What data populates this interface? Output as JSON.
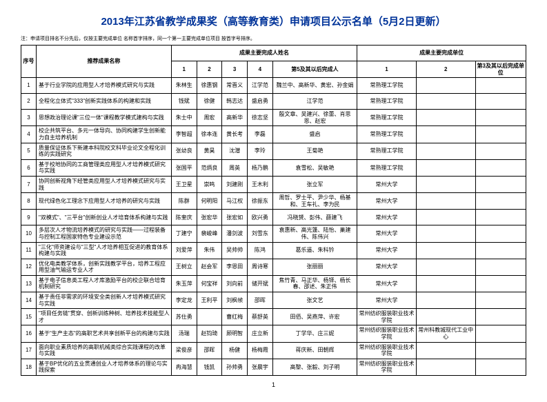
{
  "title": "2013年江苏省教学成果奖（高等教育类）申请项目公示名单（5月2日更新）",
  "note": "注：申请项目排名不分先后，仅按主要完成单位 名称首字排序，同一个第一主要完成单位项目 按首字号排序。",
  "headers": {
    "idx": "序号",
    "name": "推荐成果名称",
    "people_group": "成果主要完成人姓名",
    "units_group": "成果主要完成单位",
    "p1": "1",
    "p2": "2",
    "p3": "3",
    "p4": "4",
    "p5": "第5及其以后完成人",
    "u1": "1",
    "u2": "2",
    "u3": "第3及其以后完成单位"
  },
  "rows": [
    {
      "idx": "1",
      "name": "基于行业学院的应用型人才培养模式研究与实践",
      "p": [
        "朱林生",
        "徐惠钢",
        "常晋义",
        "江学范",
        "魏兰中、高新华、黄宏、孙金娟"
      ],
      "u": [
        "常熟理工学院",
        "",
        ""
      ]
    },
    {
      "idx": "2",
      "name": "全程化立体式\"333\"创新实践体系的构建和实践",
      "p": [
        "钱斌",
        "徐健",
        "韩志达",
        "盛启勇",
        "江学范"
      ],
      "u": [
        "常熟理工学院",
        "",
        ""
      ]
    },
    {
      "idx": "3",
      "name": "思想政治理论课\"三位一体\"课程教学模式建构与实践",
      "p": [
        "朱士中",
        "周宏",
        "高新华",
        "徐志坚",
        "殷文章、吴建兴、徐蕾、肖思恩、赵宏"
      ],
      "u": [
        "常熟理工学院",
        "",
        ""
      ]
    },
    {
      "idx": "4",
      "name": "校企共筑平台、多元一体导向、协同构建学生创新能力自主培养机制",
      "p": [
        "李智超",
        "徐本连",
        "黄长考",
        "李磊",
        "盛启"
      ],
      "u": [
        "常熟理工学院",
        "",
        ""
      ]
    },
    {
      "idx": "5",
      "name": "质量保证体系下新建本科院校文科毕业论文全程化训练的实践研究",
      "p": [
        "张幼良",
        "黄昊",
        "沈潜",
        "李玲",
        "王菊艳"
      ],
      "u": [
        "常熟理工学院",
        "",
        ""
      ]
    },
    {
      "idx": "6",
      "name": "基于校地协同的工商管理类应用型人才培养模式研究与实践",
      "p": [
        "张国平",
        "范炳良",
        "周英",
        "杨乃鹏",
        "袁雪松、吴敏艳"
      ],
      "u": [
        "常熟理工学院",
        "",
        ""
      ]
    },
    {
      "idx": "7",
      "name": "协同创新视角下经管类应用型人才培养模式研究与实践",
      "p": [
        "王卫星",
        "崇鸣",
        "刘建刚",
        "王木利",
        "张立军"
      ],
      "u": [
        "常州大学",
        "",
        ""
      ]
    },
    {
      "idx": "8",
      "name": "现代绿色化工理念下应用型人才培养的研究与实践",
      "p": [
        "陈群",
        "何明阳",
        "马江权",
        "徐振东",
        "周哲、罗士平、尹少华、杨基和、王车礼、李为民"
      ],
      "u": [
        "常州大学",
        "",
        ""
      ]
    },
    {
      "idx": "9",
      "name": "\"双模式\"、\"三平台\"创新创业人才培育体系构建与实践",
      "p": [
        "陈奎庆",
        "张宏华",
        "张宏如",
        "欧兴勇",
        "冯晓赟、彭伟、薛建飞"
      ],
      "u": [
        "常州大学",
        "",
        ""
      ]
    },
    {
      "idx": "10",
      "name": "多层次人才物流培养模式的研究与实践——过程装备与控制工程国家特色专业建设示范",
      "p": [
        "丁建宁",
        "裴峻峰",
        "潘剑波",
        "刘雪东",
        "袁惠新、高光篷、陆怡、巢建伟、陈伟兴"
      ],
      "u": [
        "常州大学",
        "",
        ""
      ]
    },
    {
      "idx": "11",
      "name": "\"三化\"师资建设与\"三型\"人才培养相互促进的教育体系构建与实践",
      "p": [
        "刘爱萍",
        "朱伟",
        "吴帅帅",
        "陈鸿",
        "葛乐遥、朱科钤"
      ],
      "u": [
        "常州大学",
        "",
        ""
      ]
    },
    {
      "idx": "12",
      "name": "优化电类教学体系，创新实践教学平台，培养工程应用型油气输运专业人才",
      "p": [
        "王树立",
        "赵会军",
        "李恩田",
        "周诗寒",
        "张丽丽"
      ],
      "u": [
        "常州大学",
        "",
        ""
      ]
    },
    {
      "idx": "13",
      "name": "基于电子信息类工程人才库激励平台的校企联合培育机制研究",
      "p": [
        "朱玉萍",
        "何宝祥",
        "刘向前",
        "储开斌",
        "焦竹青、马正华、杨铎、杨长春、邵述、朱正伟"
      ],
      "u": [
        "常州大学",
        "",
        ""
      ]
    },
    {
      "idx": "14",
      "name": "基于责任非需求的环境安全类创新人才培养模式研究与实践",
      "p": [
        "李定龙",
        "王利平",
        "刘枫帧",
        "邵晖",
        "张文艺"
      ],
      "u": [
        "常州大学",
        "",
        ""
      ]
    },
    {
      "idx": "15",
      "name": "\"项目任务链\"贯穿、创新训练种树、培养技术技能型人才",
      "p": [
        "苏仕勇",
        "",
        "曹红梅",
        "蔡舒英",
        "田佰、吴燕萍、许宏"
      ],
      "u": [
        "常州纺织服装职业技术学院",
        "",
        ""
      ]
    },
    {
      "idx": "16",
      "name": "基于\"生产主态\"的高职艺术共享创新平台的构建与实践",
      "p": [
        "汤瑞",
        "赵钧琦",
        "顾明智",
        "庄立新",
        "丁学华、庄三妮"
      ],
      "u": [
        "常州纺织服装职业技术学院",
        "常州科教城现代工业中心",
        ""
      ]
    },
    {
      "idx": "17",
      "name": "面向职业素质培养的高职机械类综合实践课程的改革与实践",
      "p": [
        "梁俊彦",
        "邵晖",
        "杨健",
        "杨梅霞",
        "蒋庆新、田朝辉"
      ],
      "u": [
        "常州纺织服装职业技术学院",
        "",
        ""
      ]
    },
    {
      "idx": "18",
      "name": "基于BP优化的五业贯通创业人才培养体系的理论与实践探索",
      "p": [
        "冉海慧",
        "钱凯",
        "孙帅勇",
        "张晨宇",
        "高黎、张毅、刘子明"
      ],
      "u": [
        "常州纺织服装职业技术学院",
        "",
        ""
      ]
    }
  ],
  "pagenum": "1"
}
